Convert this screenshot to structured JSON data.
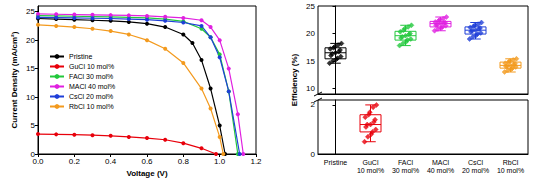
{
  "chart_data": [
    {
      "type": "line",
      "xlabel": "Voltage (V)",
      "ylabel": "Current Density (mA/cm²)",
      "xlim": [
        0,
        1.2
      ],
      "xticks": [
        {
          "value": 0,
          "label": "0.0"
        },
        {
          "value": 0.2,
          "label": "0.2"
        },
        {
          "value": 0.4,
          "label": "0.4"
        },
        {
          "value": 0.6,
          "label": "0.6"
        },
        {
          "value": 0.8,
          "label": "0.8"
        },
        {
          "value": 1.0,
          "label": "1.0"
        },
        {
          "value": 1.2,
          "label": "1.2"
        }
      ],
      "ylim": [
        0,
        26
      ],
      "yticks": [
        0,
        5,
        10,
        15,
        20,
        25
      ],
      "legend": "left",
      "series": [
        {
          "name": "Pristine",
          "color": "#000000",
          "marker": "circle",
          "x": [
            0,
            0.1,
            0.2,
            0.3,
            0.4,
            0.5,
            0.6,
            0.7,
            0.8,
            0.85,
            0.9,
            0.95,
            1.0,
            1.03
          ],
          "values": [
            23.8,
            23.7,
            23.6,
            23.5,
            23.4,
            23.2,
            22.9,
            22.3,
            21.0,
            19.5,
            16.5,
            11.5,
            5.0,
            0
          ]
        },
        {
          "name": "GuCl 10 mol%",
          "color": "#e8000b",
          "marker": "circle",
          "x": [
            0,
            0.1,
            0.2,
            0.3,
            0.4,
            0.5,
            0.6,
            0.7,
            0.8,
            0.9,
            0.98
          ],
          "values": [
            3.5,
            3.45,
            3.4,
            3.3,
            3.2,
            3.0,
            2.8,
            2.5,
            1.9,
            1.0,
            0
          ]
        },
        {
          "name": "FACl 30 mol%",
          "color": "#22c83c",
          "marker": "circle",
          "x": [
            0,
            0.1,
            0.2,
            0.3,
            0.4,
            0.5,
            0.6,
            0.7,
            0.8,
            0.9,
            0.95,
            1.0,
            1.05,
            1.1
          ],
          "values": [
            24.3,
            24.25,
            24.2,
            24.15,
            24.1,
            24.0,
            23.9,
            23.7,
            23.3,
            22.0,
            20.5,
            17.5,
            11.0,
            0
          ]
        },
        {
          "name": "MACl 40 mol%",
          "color": "#e020e0",
          "marker": "circle",
          "x": [
            0,
            0.1,
            0.2,
            0.3,
            0.4,
            0.5,
            0.6,
            0.7,
            0.8,
            0.9,
            0.95,
            1.0,
            1.05,
            1.1,
            1.13
          ],
          "values": [
            24.6,
            24.55,
            24.5,
            24.45,
            24.4,
            24.35,
            24.25,
            24.1,
            23.9,
            23.5,
            22.3,
            20.0,
            15.0,
            7.0,
            0
          ]
        },
        {
          "name": "CsCl 20 mol%",
          "color": "#1f3fd8",
          "marker": "circle",
          "x": [
            0,
            0.1,
            0.2,
            0.3,
            0.4,
            0.5,
            0.6,
            0.7,
            0.8,
            0.9,
            0.95,
            1.0,
            1.05,
            1.11
          ],
          "values": [
            24.0,
            23.95,
            23.9,
            23.85,
            23.8,
            23.7,
            23.6,
            23.4,
            23.1,
            22.5,
            20.5,
            17.0,
            11.0,
            0
          ]
        },
        {
          "name": "RbCl 10 mol%",
          "color": "#f39a1e",
          "marker": "circle",
          "x": [
            0,
            0.1,
            0.2,
            0.3,
            0.4,
            0.5,
            0.6,
            0.7,
            0.8,
            0.9,
            0.95,
            1.0,
            1.02
          ],
          "values": [
            22.7,
            22.5,
            22.3,
            22.0,
            21.6,
            21.0,
            20.0,
            18.5,
            16.0,
            11.5,
            8.0,
            3.0,
            0
          ]
        }
      ]
    },
    {
      "type": "boxplot",
      "ylabel": "Efficiency (%)",
      "categories": [
        "Pristine",
        "GuCl\n10 mol%",
        "FACl\n30 mol%",
        "MACl\n40 mol%",
        "CsCl\n20 mol%",
        "RbCl\n10 mol%"
      ],
      "ylim": [
        0,
        25
      ],
      "yticks": [
        0,
        2,
        10,
        15,
        20,
        25
      ],
      "axis_break": [
        2.2,
        9
      ],
      "colors": [
        "#000000",
        "#e8000b",
        "#22c83c",
        "#e020e0",
        "#1f3fd8",
        "#f39a1e"
      ],
      "marker": "diamond",
      "boxes": [
        [
          14.6,
          15.4,
          16.5,
          17.4,
          18.2
        ],
        [
          0.5,
          0.9,
          1.2,
          1.6,
          2.0
        ],
        [
          17.8,
          18.8,
          19.6,
          20.4,
          21.5
        ],
        [
          20.5,
          21.2,
          21.8,
          22.2,
          23.0
        ],
        [
          19.0,
          19.9,
          20.6,
          21.2,
          22.0
        ],
        [
          13.0,
          13.7,
          14.2,
          14.8,
          15.4
        ]
      ],
      "points": [
        [
          14.6,
          15.0,
          15.3,
          15.5,
          15.8,
          16.0,
          16.3,
          16.5,
          16.7,
          17.0,
          17.2,
          17.4,
          17.6,
          17.9,
          18.2
        ],
        [
          0.5,
          0.7,
          0.8,
          0.9,
          1.0,
          1.1,
          1.2,
          1.2,
          1.3,
          1.4,
          1.5,
          1.6,
          1.7,
          1.9,
          2.0
        ],
        [
          17.8,
          18.2,
          18.5,
          18.8,
          19.0,
          19.2,
          19.4,
          19.6,
          19.8,
          20.0,
          20.3,
          20.6,
          20.9,
          21.2,
          21.5
        ],
        [
          20.5,
          20.8,
          21.0,
          21.2,
          21.4,
          21.5,
          21.6,
          21.8,
          21.9,
          22.0,
          22.1,
          22.3,
          22.5,
          22.7,
          23.0
        ],
        [
          19.0,
          19.4,
          19.7,
          19.9,
          20.1,
          20.3,
          20.5,
          20.6,
          20.8,
          21.0,
          21.1,
          21.3,
          21.5,
          21.7,
          22.0
        ],
        [
          13.0,
          13.3,
          13.5,
          13.7,
          13.9,
          14.0,
          14.1,
          14.2,
          14.3,
          14.5,
          14.6,
          14.8,
          15.0,
          15.2,
          15.4
        ]
      ]
    }
  ]
}
